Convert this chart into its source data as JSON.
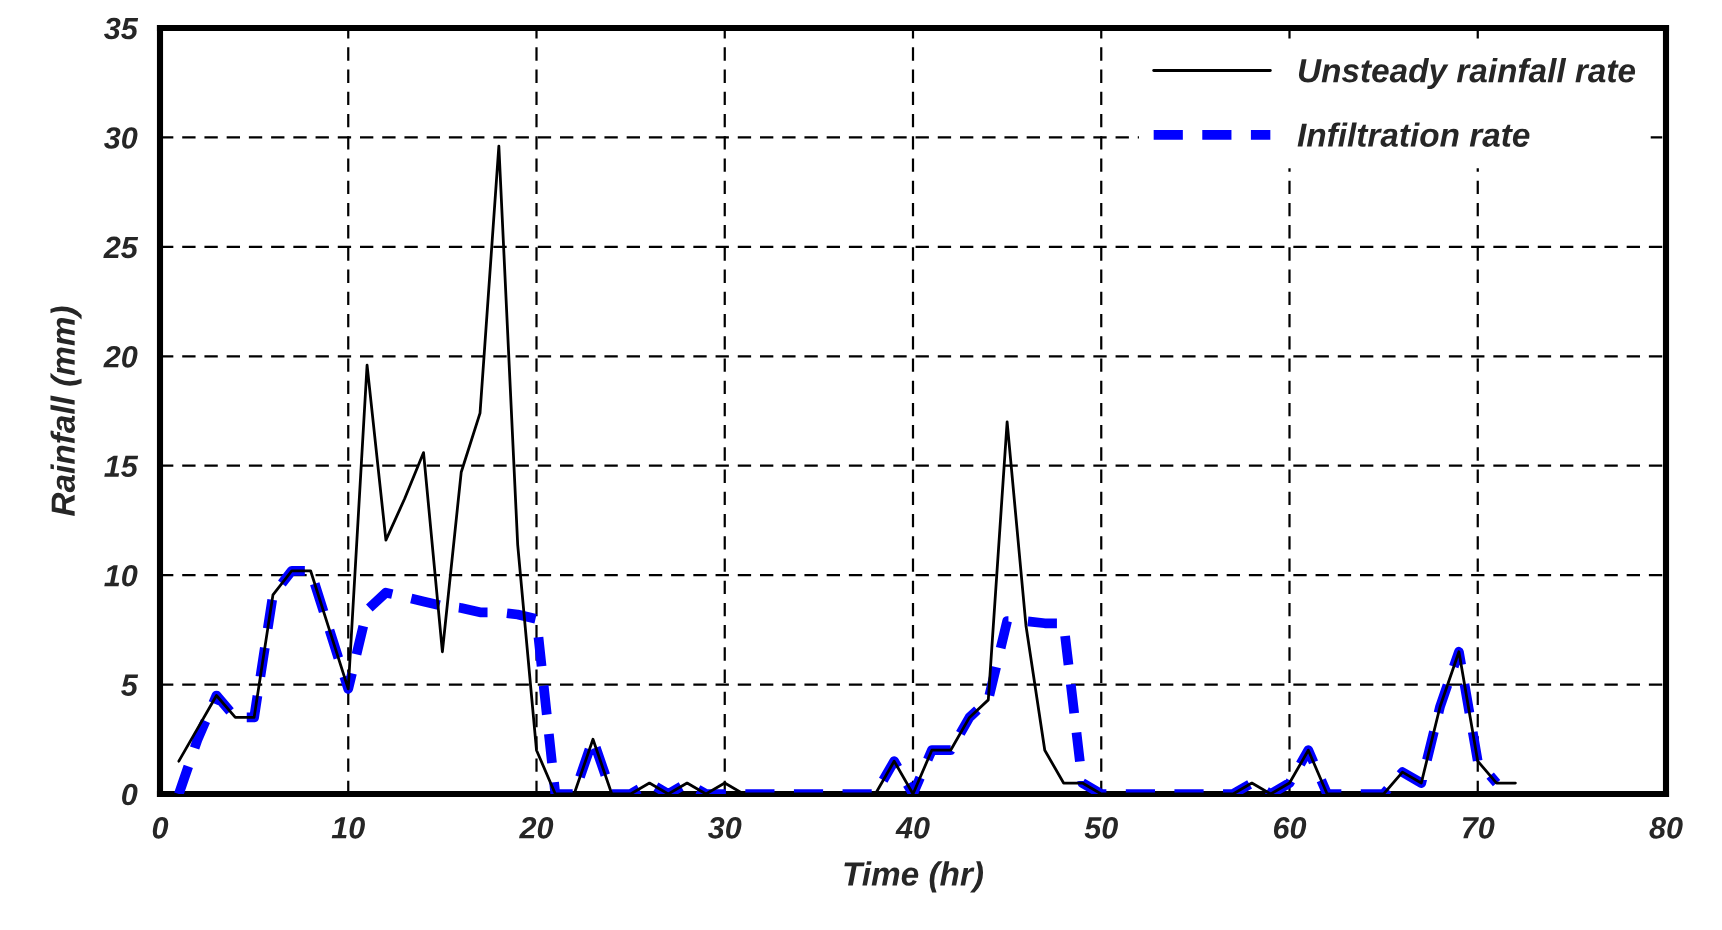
{
  "chart_data": {
    "type": "line",
    "xlabel": "Time (hr)",
    "ylabel": "Rainfall (mm)",
    "x": [
      1,
      2,
      3,
      4,
      5,
      6,
      7,
      8,
      9,
      10,
      11,
      12,
      13,
      14,
      15,
      16,
      17,
      18,
      19,
      20,
      21,
      22,
      23,
      24,
      25,
      26,
      27,
      28,
      29,
      30,
      31,
      32,
      33,
      34,
      35,
      36,
      37,
      38,
      39,
      40,
      41,
      42,
      43,
      44,
      45,
      46,
      47,
      48,
      49,
      50,
      51,
      52,
      53,
      54,
      55,
      56,
      57,
      58,
      59,
      60,
      61,
      62,
      63,
      64,
      65,
      66,
      67,
      68,
      69,
      70,
      71,
      72
    ],
    "series": [
      {
        "name": "Unsteady rainfall rate",
        "color": "#000000",
        "line_style": "solid",
        "values": [
          1.5,
          3,
          4.5,
          3.5,
          3.5,
          9.1,
          10.2,
          10.2,
          7.5,
          4.8,
          19.6,
          11.6,
          13.5,
          15.6,
          6.5,
          14.7,
          17.4,
          29.6,
          11.4,
          2,
          0,
          0,
          2.5,
          0,
          0,
          0.5,
          0,
          0.5,
          0,
          0.5,
          0,
          0,
          0,
          0,
          0,
          0,
          0,
          0,
          1.5,
          0,
          2,
          2,
          3.5,
          4.3,
          17,
          7.7,
          2,
          0.5,
          0.5,
          0,
          0,
          0,
          0,
          0,
          0,
          0,
          0,
          0.5,
          0,
          0.5,
          2,
          0,
          0,
          0,
          0,
          1,
          0.5,
          4,
          6.5,
          1.5,
          0.5,
          0.5
        ]
      },
      {
        "name": "Infiltration rate",
        "color": "#0000ff",
        "line_style": "dashed",
        "values": [
          0,
          2.5,
          4.5,
          3.5,
          3.5,
          9.1,
          10.2,
          10.2,
          7.5,
          4.8,
          8.4,
          9.2,
          9,
          8.8,
          8.6,
          8.5,
          8.3,
          8.3,
          8.2,
          8,
          0,
          0,
          2.5,
          0,
          0,
          0.5,
          0,
          0.5,
          0,
          0,
          0,
          0,
          0,
          0,
          0,
          0,
          0,
          0,
          1.5,
          0,
          2,
          2,
          3.5,
          4.3,
          7.9,
          7.9,
          7.8,
          7.8,
          0.5,
          0,
          0,
          0,
          0,
          0,
          0,
          0,
          0,
          0.5,
          0,
          0.5,
          2,
          0,
          0,
          0,
          0,
          1,
          0.5,
          4,
          6.5,
          1.5,
          0.5,
          null
        ]
      }
    ],
    "xlim": [
      0,
      80
    ],
    "xticks": [
      0,
      10,
      20,
      30,
      40,
      50,
      60,
      70,
      80
    ],
    "ylim": [
      0,
      35
    ],
    "yticks": [
      0,
      5,
      10,
      15,
      20,
      25,
      30,
      35
    ],
    "grid": true,
    "legend": "top right",
    "marker": "none"
  }
}
